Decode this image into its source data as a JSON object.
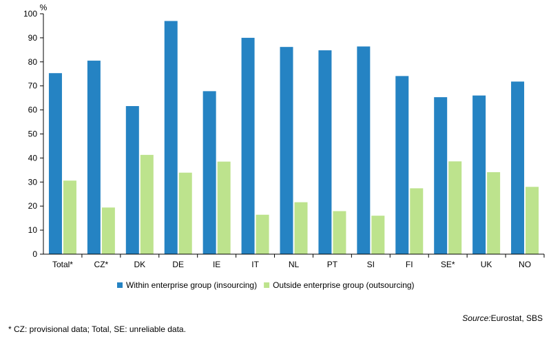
{
  "colors": {
    "series1": "#2583c3",
    "series2": "#bde38d",
    "axis": "#000000"
  },
  "chart_data": {
    "type": "bar",
    "title": "",
    "xlabel": "",
    "ylabel": "%",
    "ylim": [
      0,
      100
    ],
    "yticks": [
      0,
      10,
      20,
      30,
      40,
      50,
      60,
      70,
      80,
      90,
      100
    ],
    "grid": false,
    "legend_position": "bottom",
    "categories": [
      "Total*",
      "CZ*",
      "DK",
      "DE",
      "IE",
      "IT",
      "NL",
      "PT",
      "SI",
      "FI",
      "SE*",
      "UK",
      "NO"
    ],
    "series": [
      {
        "name": "Within enterprise group (insourcing)",
        "values": [
          75.3,
          80.5,
          61.6,
          97.0,
          67.8,
          90.0,
          86.2,
          84.8,
          86.4,
          74.1,
          65.3,
          66.0,
          71.8
        ]
      },
      {
        "name": "Outside enterprise group (outsourcing)",
        "values": [
          30.6,
          19.4,
          41.3,
          33.9,
          38.5,
          16.4,
          21.6,
          17.9,
          16.0,
          27.4,
          38.6,
          34.1,
          28.0
        ]
      }
    ]
  },
  "source": {
    "label": "Source:",
    "text": "Eurostat, SBS"
  },
  "footnote": "* CZ: provisional data; Total, SE: unreliable data."
}
